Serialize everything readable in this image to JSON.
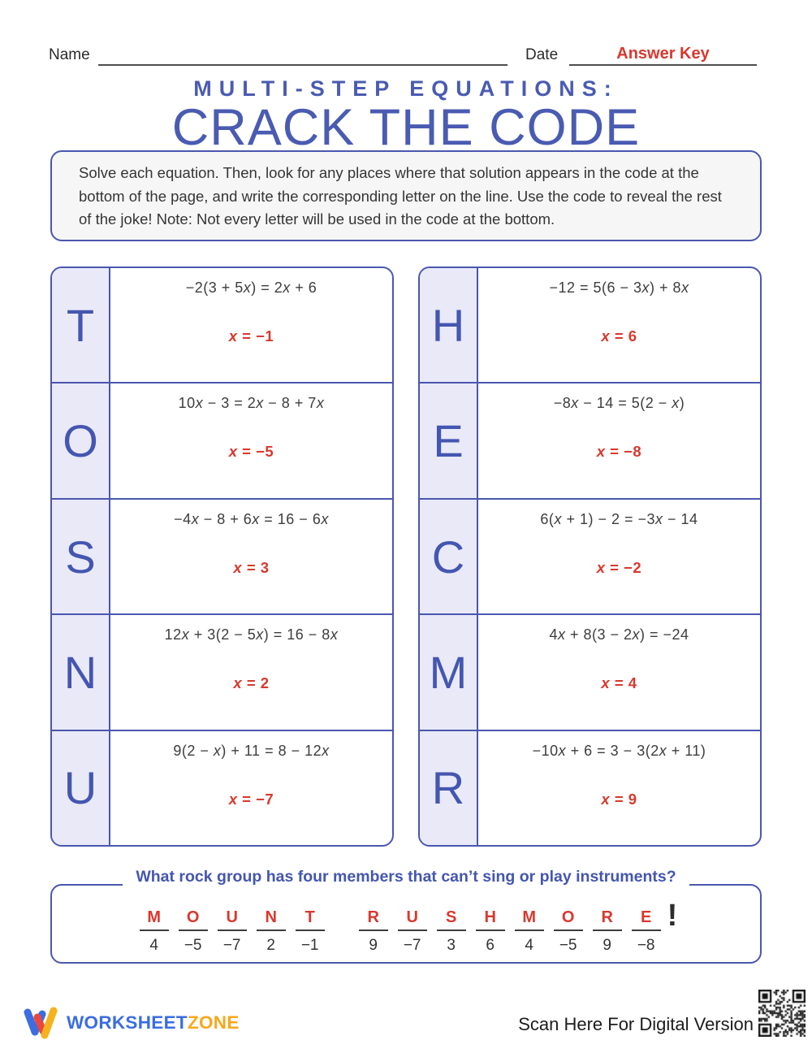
{
  "header": {
    "name_label": "Name",
    "date_label": "Date",
    "answer_key": "Answer Key"
  },
  "title": {
    "subtitle": "MULTI-STEP EQUATIONS:",
    "main": "CRACK THE CODE"
  },
  "instructions": "Solve each equation. Then, look for any places where that solution appears in the code at the bottom of the page, and write the corresponding letter on the line. Use the code to reveal the rest of the joke! Note: Not every letter will be used in the code at the bottom.",
  "left_table": [
    {
      "letter": "T",
      "equation": "−2(3 + 5x) = 2x + 6",
      "answer": "x = −1"
    },
    {
      "letter": "O",
      "equation": "10x − 3 = 2x − 8 + 7x",
      "answer": "x = −5"
    },
    {
      "letter": "S",
      "equation": "−4x − 8 + 6x = 16 − 6x",
      "answer": "x = 3"
    },
    {
      "letter": "N",
      "equation": "12x + 3(2 − 5x) = 16 − 8x",
      "answer": "x = 2"
    },
    {
      "letter": "U",
      "equation": "9(2 − x) + 11 = 8 − 12x",
      "answer": "x = −7"
    }
  ],
  "right_table": [
    {
      "letter": "H",
      "equation": "−12 = 5(6 − 3x) + 8x",
      "answer": "x = 6"
    },
    {
      "letter": "E",
      "equation": "−8x − 14 = 5(2 − x)",
      "answer": "x = −8"
    },
    {
      "letter": "C",
      "equation": "6(x + 1) − 2 = −3x − 14",
      "answer": "x = −2"
    },
    {
      "letter": "M",
      "equation": "4x + 8(3 − 2x) = −24",
      "answer": "x = 4"
    },
    {
      "letter": "R",
      "equation": "−10x + 6 = 3 − 3(2x + 11)",
      "answer": "x = 9"
    }
  ],
  "joke": {
    "question": "What rock group has four members that can’t sing or play instruments?",
    "exclamation": "!",
    "code": [
      {
        "letter": "M",
        "number": "4"
      },
      {
        "letter": "O",
        "number": "−5"
      },
      {
        "letter": "U",
        "number": "−7"
      },
      {
        "letter": "N",
        "number": "2"
      },
      {
        "letter": "T",
        "number": "−1"
      },
      {
        "letter": "R",
        "number": "9"
      },
      {
        "letter": "U",
        "number": "−7"
      },
      {
        "letter": "S",
        "number": "3"
      },
      {
        "letter": "H",
        "number": "6"
      },
      {
        "letter": "M",
        "number": "4"
      },
      {
        "letter": "O",
        "number": "−5"
      },
      {
        "letter": "R",
        "number": "9"
      },
      {
        "letter": "E",
        "number": "−8"
      }
    ]
  },
  "footer": {
    "logo_worksheet": "WORKSHEET",
    "logo_zone": "ZONE",
    "scan_text": "Scan Here For Digital Version"
  },
  "colors": {
    "accent_blue": "#4a57ae",
    "letter_blue": "#4456b0",
    "answer_red": "#d9382e",
    "lavender": "#e9e9f8",
    "logo_blue": "#3b6de0",
    "logo_orange": "#f6a81c"
  }
}
